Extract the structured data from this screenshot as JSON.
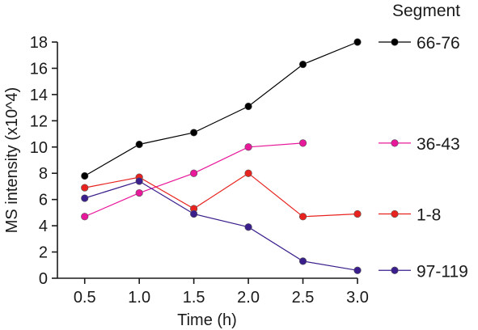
{
  "chart_data": {
    "type": "line",
    "title": "",
    "xlabel": "Time (h)",
    "ylabel": "MS intensity (x10^4)",
    "xlim": [
      0.25,
      3.0
    ],
    "ylim": [
      0,
      18
    ],
    "x_ticks": [
      "0.5",
      "1.0",
      "1.5",
      "2.0",
      "2.5",
      "3.0"
    ],
    "y_ticks": [
      "0",
      "2",
      "4",
      "6",
      "8",
      "10",
      "12",
      "14",
      "16",
      "18"
    ],
    "grid": false,
    "legend_title": "Segment",
    "legend_position": "right",
    "series": [
      {
        "name": "66-76",
        "color": "#000000",
        "x": [
          0.5,
          1.0,
          1.5,
          2.0,
          2.5,
          3.0
        ],
        "y": [
          7.8,
          10.2,
          11.1,
          13.1,
          16.3,
          18.0
        ]
      },
      {
        "name": "36-43",
        "color": "#e8189a",
        "x": [
          0.5,
          1.0,
          1.5,
          2.0,
          2.5
        ],
        "y": [
          4.7,
          6.5,
          8.0,
          10.0,
          10.3
        ]
      },
      {
        "name": "1-8",
        "color": "#e8231f",
        "x": [
          0.5,
          1.0,
          1.5,
          2.0,
          2.5,
          3.0
        ],
        "y": [
          6.9,
          7.7,
          5.3,
          8.0,
          4.7,
          4.9
        ]
      },
      {
        "name": "97-119",
        "color": "#3a1e8c",
        "x": [
          0.5,
          1.0,
          1.5,
          2.0,
          2.5,
          3.0
        ],
        "y": [
          6.1,
          7.4,
          4.9,
          3.9,
          1.3,
          0.6
        ]
      }
    ]
  }
}
